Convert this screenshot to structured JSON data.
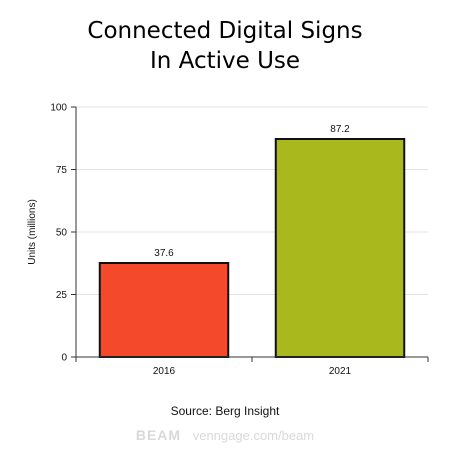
{
  "chart_data": {
    "type": "bar",
    "title_lines": [
      "Connected Digital Signs",
      "In Active Use"
    ],
    "categories": [
      "2016",
      "2021"
    ],
    "values": [
      37.6,
      87.2
    ],
    "data_labels": [
      "37.6",
      "87.2"
    ],
    "colors": [
      "#f4492a",
      "#a8b81d"
    ],
    "xlabel": "",
    "ylabel": "Units (millions)",
    "ylim": [
      0,
      100
    ],
    "yticks": [
      0,
      25,
      50,
      75,
      100
    ],
    "grid": true,
    "source": "Source: Berg Insight"
  },
  "footer": {
    "brand": "BEAM",
    "url": "venngage.com/beam"
  }
}
